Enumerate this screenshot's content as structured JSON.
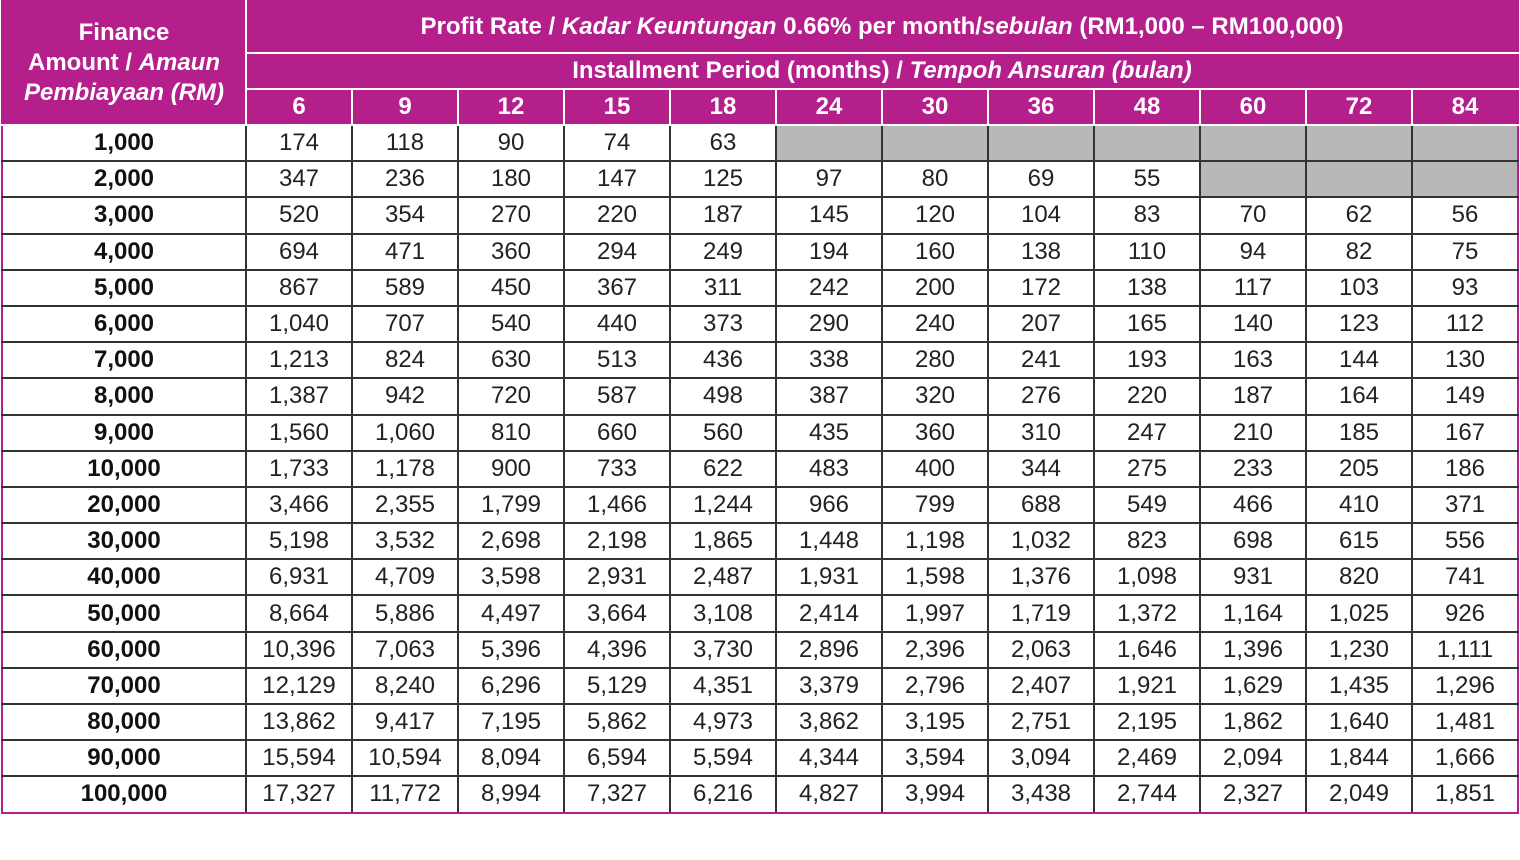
{
  "header": {
    "amount": {
      "line1": "Finance",
      "line2a": "Amount / ",
      "line2b": "Amaun",
      "line3": "Pembiayaan (RM)"
    },
    "rate": {
      "a": "Profit Rate / ",
      "b": "Kadar Keuntungan",
      "c": " 0.66% per month/",
      "d": "sebulan",
      "e": " (RM1,000 – RM100,000)"
    },
    "period": {
      "a": "Installment Period (months) / ",
      "b": "Tempoh Ansuran (bulan)"
    },
    "months": [
      "6",
      "9",
      "12",
      "15",
      "18",
      "24",
      "30",
      "36",
      "48",
      "60",
      "72",
      "84"
    ]
  },
  "colors": {
    "accent": "#b41f8c",
    "unavailable": "#b8b8b8"
  },
  "rows": [
    {
      "amount": "1,000",
      "values": [
        "174",
        "118",
        "90",
        "74",
        "63",
        null,
        null,
        null,
        null,
        null,
        null,
        null
      ]
    },
    {
      "amount": "2,000",
      "values": [
        "347",
        "236",
        "180",
        "147",
        "125",
        "97",
        "80",
        "69",
        "55",
        null,
        null,
        null
      ]
    },
    {
      "amount": "3,000",
      "values": [
        "520",
        "354",
        "270",
        "220",
        "187",
        "145",
        "120",
        "104",
        "83",
        "70",
        "62",
        "56"
      ]
    },
    {
      "amount": "4,000",
      "values": [
        "694",
        "471",
        "360",
        "294",
        "249",
        "194",
        "160",
        "138",
        "110",
        "94",
        "82",
        "75"
      ]
    },
    {
      "amount": "5,000",
      "values": [
        "867",
        "589",
        "450",
        "367",
        "311",
        "242",
        "200",
        "172",
        "138",
        "117",
        "103",
        "93"
      ]
    },
    {
      "amount": "6,000",
      "values": [
        "1,040",
        "707",
        "540",
        "440",
        "373",
        "290",
        "240",
        "207",
        "165",
        "140",
        "123",
        "112"
      ]
    },
    {
      "amount": "7,000",
      "values": [
        "1,213",
        "824",
        "630",
        "513",
        "436",
        "338",
        "280",
        "241",
        "193",
        "163",
        "144",
        "130"
      ]
    },
    {
      "amount": "8,000",
      "values": [
        "1,387",
        "942",
        "720",
        "587",
        "498",
        "387",
        "320",
        "276",
        "220",
        "187",
        "164",
        "149"
      ]
    },
    {
      "amount": "9,000",
      "values": [
        "1,560",
        "1,060",
        "810",
        "660",
        "560",
        "435",
        "360",
        "310",
        "247",
        "210",
        "185",
        "167"
      ]
    },
    {
      "amount": "10,000",
      "values": [
        "1,733",
        "1,178",
        "900",
        "733",
        "622",
        "483",
        "400",
        "344",
        "275",
        "233",
        "205",
        "186"
      ]
    },
    {
      "amount": "20,000",
      "values": [
        "3,466",
        "2,355",
        "1,799",
        "1,466",
        "1,244",
        "966",
        "799",
        "688",
        "549",
        "466",
        "410",
        "371"
      ]
    },
    {
      "amount": "30,000",
      "values": [
        "5,198",
        "3,532",
        "2,698",
        "2,198",
        "1,865",
        "1,448",
        "1,198",
        "1,032",
        "823",
        "698",
        "615",
        "556"
      ]
    },
    {
      "amount": "40,000",
      "values": [
        "6,931",
        "4,709",
        "3,598",
        "2,931",
        "2,487",
        "1,931",
        "1,598",
        "1,376",
        "1,098",
        "931",
        "820",
        "741"
      ]
    },
    {
      "amount": "50,000",
      "values": [
        "8,664",
        "5,886",
        "4,497",
        "3,664",
        "3,108",
        "2,414",
        "1,997",
        "1,719",
        "1,372",
        "1,164",
        "1,025",
        "926"
      ]
    },
    {
      "amount": "60,000",
      "values": [
        "10,396",
        "7,063",
        "5,396",
        "4,396",
        "3,730",
        "2,896",
        "2,396",
        "2,063",
        "1,646",
        "1,396",
        "1,230",
        "1,111"
      ]
    },
    {
      "amount": "70,000",
      "values": [
        "12,129",
        "8,240",
        "6,296",
        "5,129",
        "4,351",
        "3,379",
        "2,796",
        "2,407",
        "1,921",
        "1,629",
        "1,435",
        "1,296"
      ]
    },
    {
      "amount": "80,000",
      "values": [
        "13,862",
        "9,417",
        "7,195",
        "5,862",
        "4,973",
        "3,862",
        "3,195",
        "2,751",
        "2,195",
        "1,862",
        "1,640",
        "1,481"
      ]
    },
    {
      "amount": "90,000",
      "values": [
        "15,594",
        "10,594",
        "8,094",
        "6,594",
        "5,594",
        "4,344",
        "3,594",
        "3,094",
        "2,469",
        "2,094",
        "1,844",
        "1,666"
      ]
    },
    {
      "amount": "100,000",
      "values": [
        "17,327",
        "11,772",
        "8,994",
        "7,327",
        "6,216",
        "4,827",
        "3,994",
        "3,438",
        "2,744",
        "2,327",
        "2,049",
        "1,851"
      ]
    }
  ]
}
